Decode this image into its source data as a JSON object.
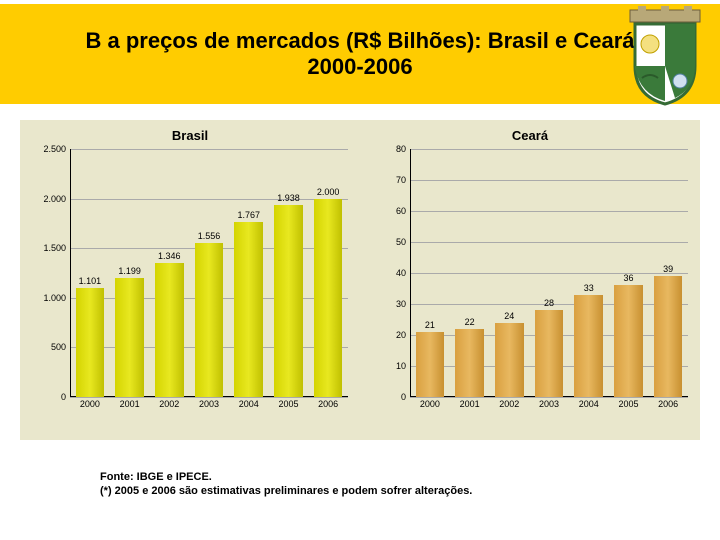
{
  "header": {
    "line1": "B a preços de mercados (R$ Bilhões): Brasil e Ceará",
    "line2": "2000-2006"
  },
  "charts": [
    {
      "title": "Brasil",
      "categories": [
        "2000",
        "2001",
        "2002",
        "2003",
        "2004",
        "2005",
        "2006"
      ],
      "values": [
        1101,
        1199,
        1346,
        1556,
        1767,
        1938,
        2000
      ],
      "value_labels": [
        "1.101",
        "1.199",
        "1.346",
        "1.556",
        "1.767",
        "1.938",
        "2.000"
      ],
      "ylim": [
        0,
        2500
      ],
      "ytick_step": 500,
      "ytick_labels": [
        "0",
        "500",
        "1.000",
        "1.500",
        "2.000",
        "2.500"
      ],
      "bar_color": "yellow",
      "background": "#e9e7cc",
      "grid_color": "#aaaaaa",
      "label_fontsize": 9
    },
    {
      "title": "Ceará",
      "categories": [
        "2000",
        "2001",
        "2002",
        "2003",
        "2004",
        "2005",
        "2006"
      ],
      "values": [
        21,
        22,
        24,
        28,
        33,
        36,
        39
      ],
      "value_labels": [
        "21",
        "22",
        "24",
        "28",
        "33",
        "36",
        "39"
      ],
      "ylim": [
        0,
        80
      ],
      "ytick_step": 10,
      "ytick_labels": [
        "0",
        "10",
        "20",
        "30",
        "40",
        "50",
        "60",
        "70",
        "80"
      ],
      "bar_color": "orange",
      "background": "#e9e7cc",
      "grid_color": "#aaaaaa",
      "label_fontsize": 9
    }
  ],
  "source": {
    "line1": "Fonte: IBGE e IPECE.",
    "line2": "(*) 2005 e 2006 são estimativas preliminares e podem sofrer alterações."
  },
  "colors": {
    "header_band": "#ffcc00",
    "chart_bg": "#e9e7cc",
    "bar_yellow": "#d4d400",
    "bar_orange": "#d9a040"
  }
}
